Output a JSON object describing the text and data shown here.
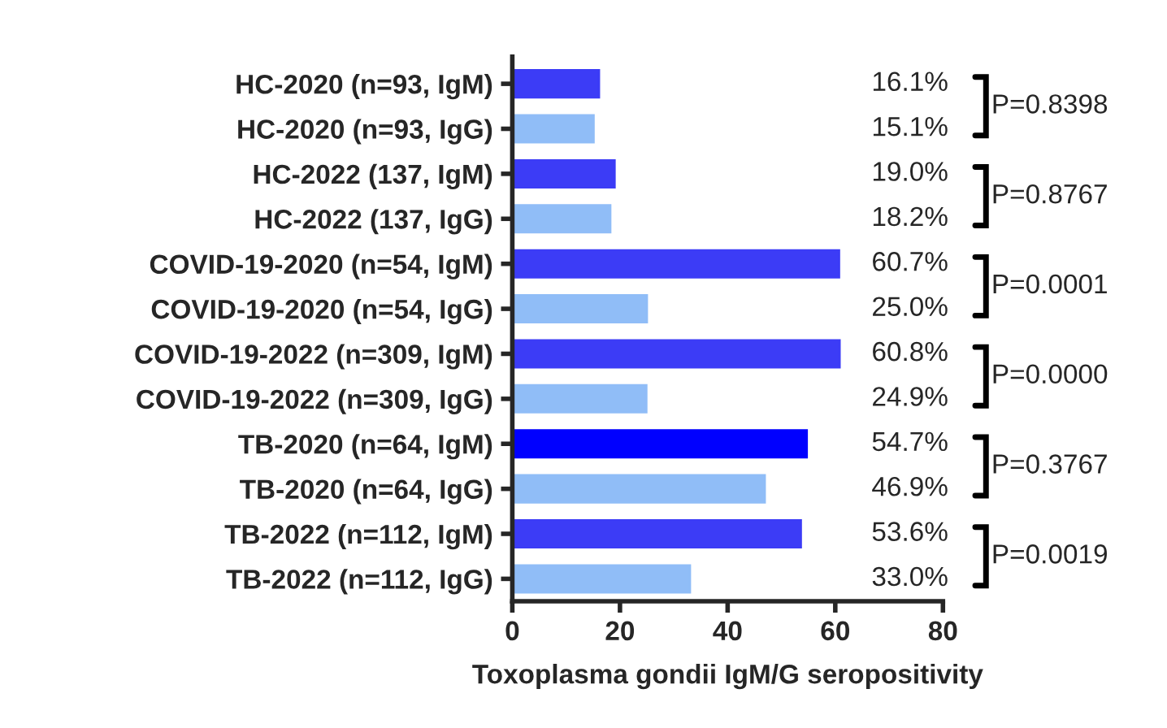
{
  "chart_data": {
    "type": "bar",
    "orientation": "horizontal",
    "xlabel": "Toxoplasma gondii IgM/G seropositivity",
    "categories": [
      "HC-2020 (n=93, IgM)",
      "HC-2020 (n=93, IgG)",
      "HC-2022 (137, IgM)",
      "HC-2022 (137, IgG)",
      "COVID-19-2020 (n=54, IgM)",
      "COVID-19-2020 (n=54, IgG)",
      "COVID-19-2022 (n=309, IgM)",
      "COVID-19-2022 (n=309, IgG)",
      "TB-2020 (n=64, IgM)",
      "TB-2020 (n=64, IgG)",
      "TB-2022 (n=112, IgM)",
      "TB-2022 (n=112, IgG)"
    ],
    "values": [
      16.1,
      15.1,
      19.0,
      18.2,
      60.7,
      25.0,
      60.8,
      24.9,
      54.7,
      46.9,
      53.6,
      33.0
    ],
    "value_labels": [
      "16.1%",
      "15.1%",
      "19.0%",
      "18.2%",
      "60.7%",
      "25.0%",
      "60.8%",
      "24.9%",
      "54.7%",
      "46.9%",
      "53.6%",
      "33.0%"
    ],
    "colors": [
      "#3c3cf6",
      "#90bdf7",
      "#3c3cf6",
      "#90bdf7",
      "#3c3cf6",
      "#90bdf7",
      "#3c3cf6",
      "#90bdf7",
      "#0000ff",
      "#90bdf7",
      "#3c3cf6",
      "#90bdf7"
    ],
    "xlim": [
      0,
      80
    ],
    "xticks": [
      0,
      20,
      40,
      60,
      80
    ],
    "grid": false,
    "legend": false,
    "annotations": [
      "P=0.8398",
      "P=0.8767",
      "P=0.0001",
      "P=0.0000",
      "P=0.3767",
      "P=0.0019"
    ]
  }
}
